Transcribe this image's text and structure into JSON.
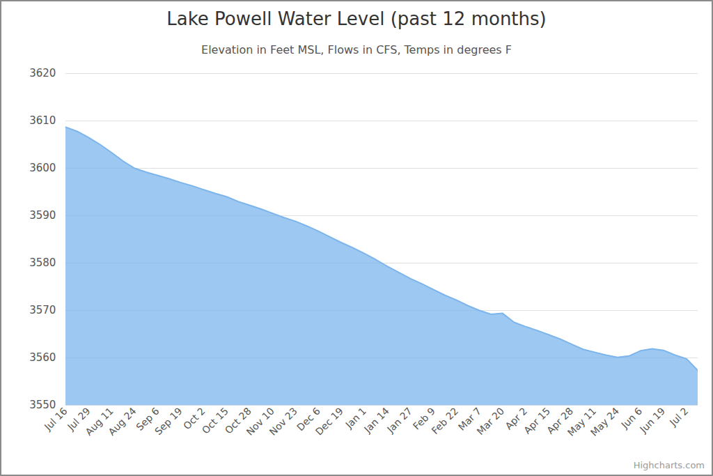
{
  "chart_data": {
    "type": "area",
    "title": "Lake Powell Water Level (past 12 months)",
    "subtitle": "Elevation in Feet MSL, Flows in CFS, Temps in degrees F",
    "caption": "Highcharts.com",
    "categories": [
      "Jul 16",
      null,
      "Jul 29",
      null,
      "Aug 11",
      null,
      "Aug 24",
      null,
      "Sep 6",
      null,
      "Sep 19",
      null,
      "Oct 2",
      null,
      "Oct 15",
      null,
      "Oct 28",
      null,
      "Nov 10",
      null,
      "Nov 23",
      null,
      "Dec 6",
      null,
      "Dec 19",
      null,
      "Jan 1",
      null,
      "Jan 14",
      null,
      "Jan 27",
      null,
      "Feb 9",
      null,
      "Feb 22",
      null,
      "Mar 7",
      null,
      "Mar 20",
      null,
      "Apr 2",
      null,
      "Apr 15",
      null,
      "Apr 28",
      null,
      "May 11",
      null,
      "May 24",
      null,
      "Jun 6",
      null,
      "Jun 19",
      null,
      "Jul 2",
      null
    ],
    "values": [
      3608.7,
      3607.8,
      3606.5,
      3605,
      3603.3,
      3601.5,
      3600,
      3599.2,
      3598.5,
      3597.8,
      3597,
      3596.3,
      3595.5,
      3594.7,
      3594,
      3593,
      3592.2,
      3591.4,
      3590.5,
      3589.6,
      3588.8,
      3587.8,
      3586.7,
      3585.5,
      3584.3,
      3583.2,
      3582,
      3580.7,
      3579.3,
      3578,
      3576.7,
      3575.6,
      3574.4,
      3573.2,
      3572.2,
      3571,
      3570,
      3569.2,
      3569.4,
      3567.5,
      3566.6,
      3565.8,
      3564.9,
      3564,
      3562.9,
      3561.8,
      3561.2,
      3560.6,
      3560.1,
      3560.4,
      3561.5,
      3561.9,
      3561.6,
      3560.6,
      3559.8,
      3557.3
    ],
    "color": "#7cb5ec",
    "ylim": [
      3550,
      3620
    ],
    "yticks": [
      3550,
      3560,
      3570,
      3580,
      3590,
      3600,
      3610,
      3620
    ],
    "grid": true
  }
}
